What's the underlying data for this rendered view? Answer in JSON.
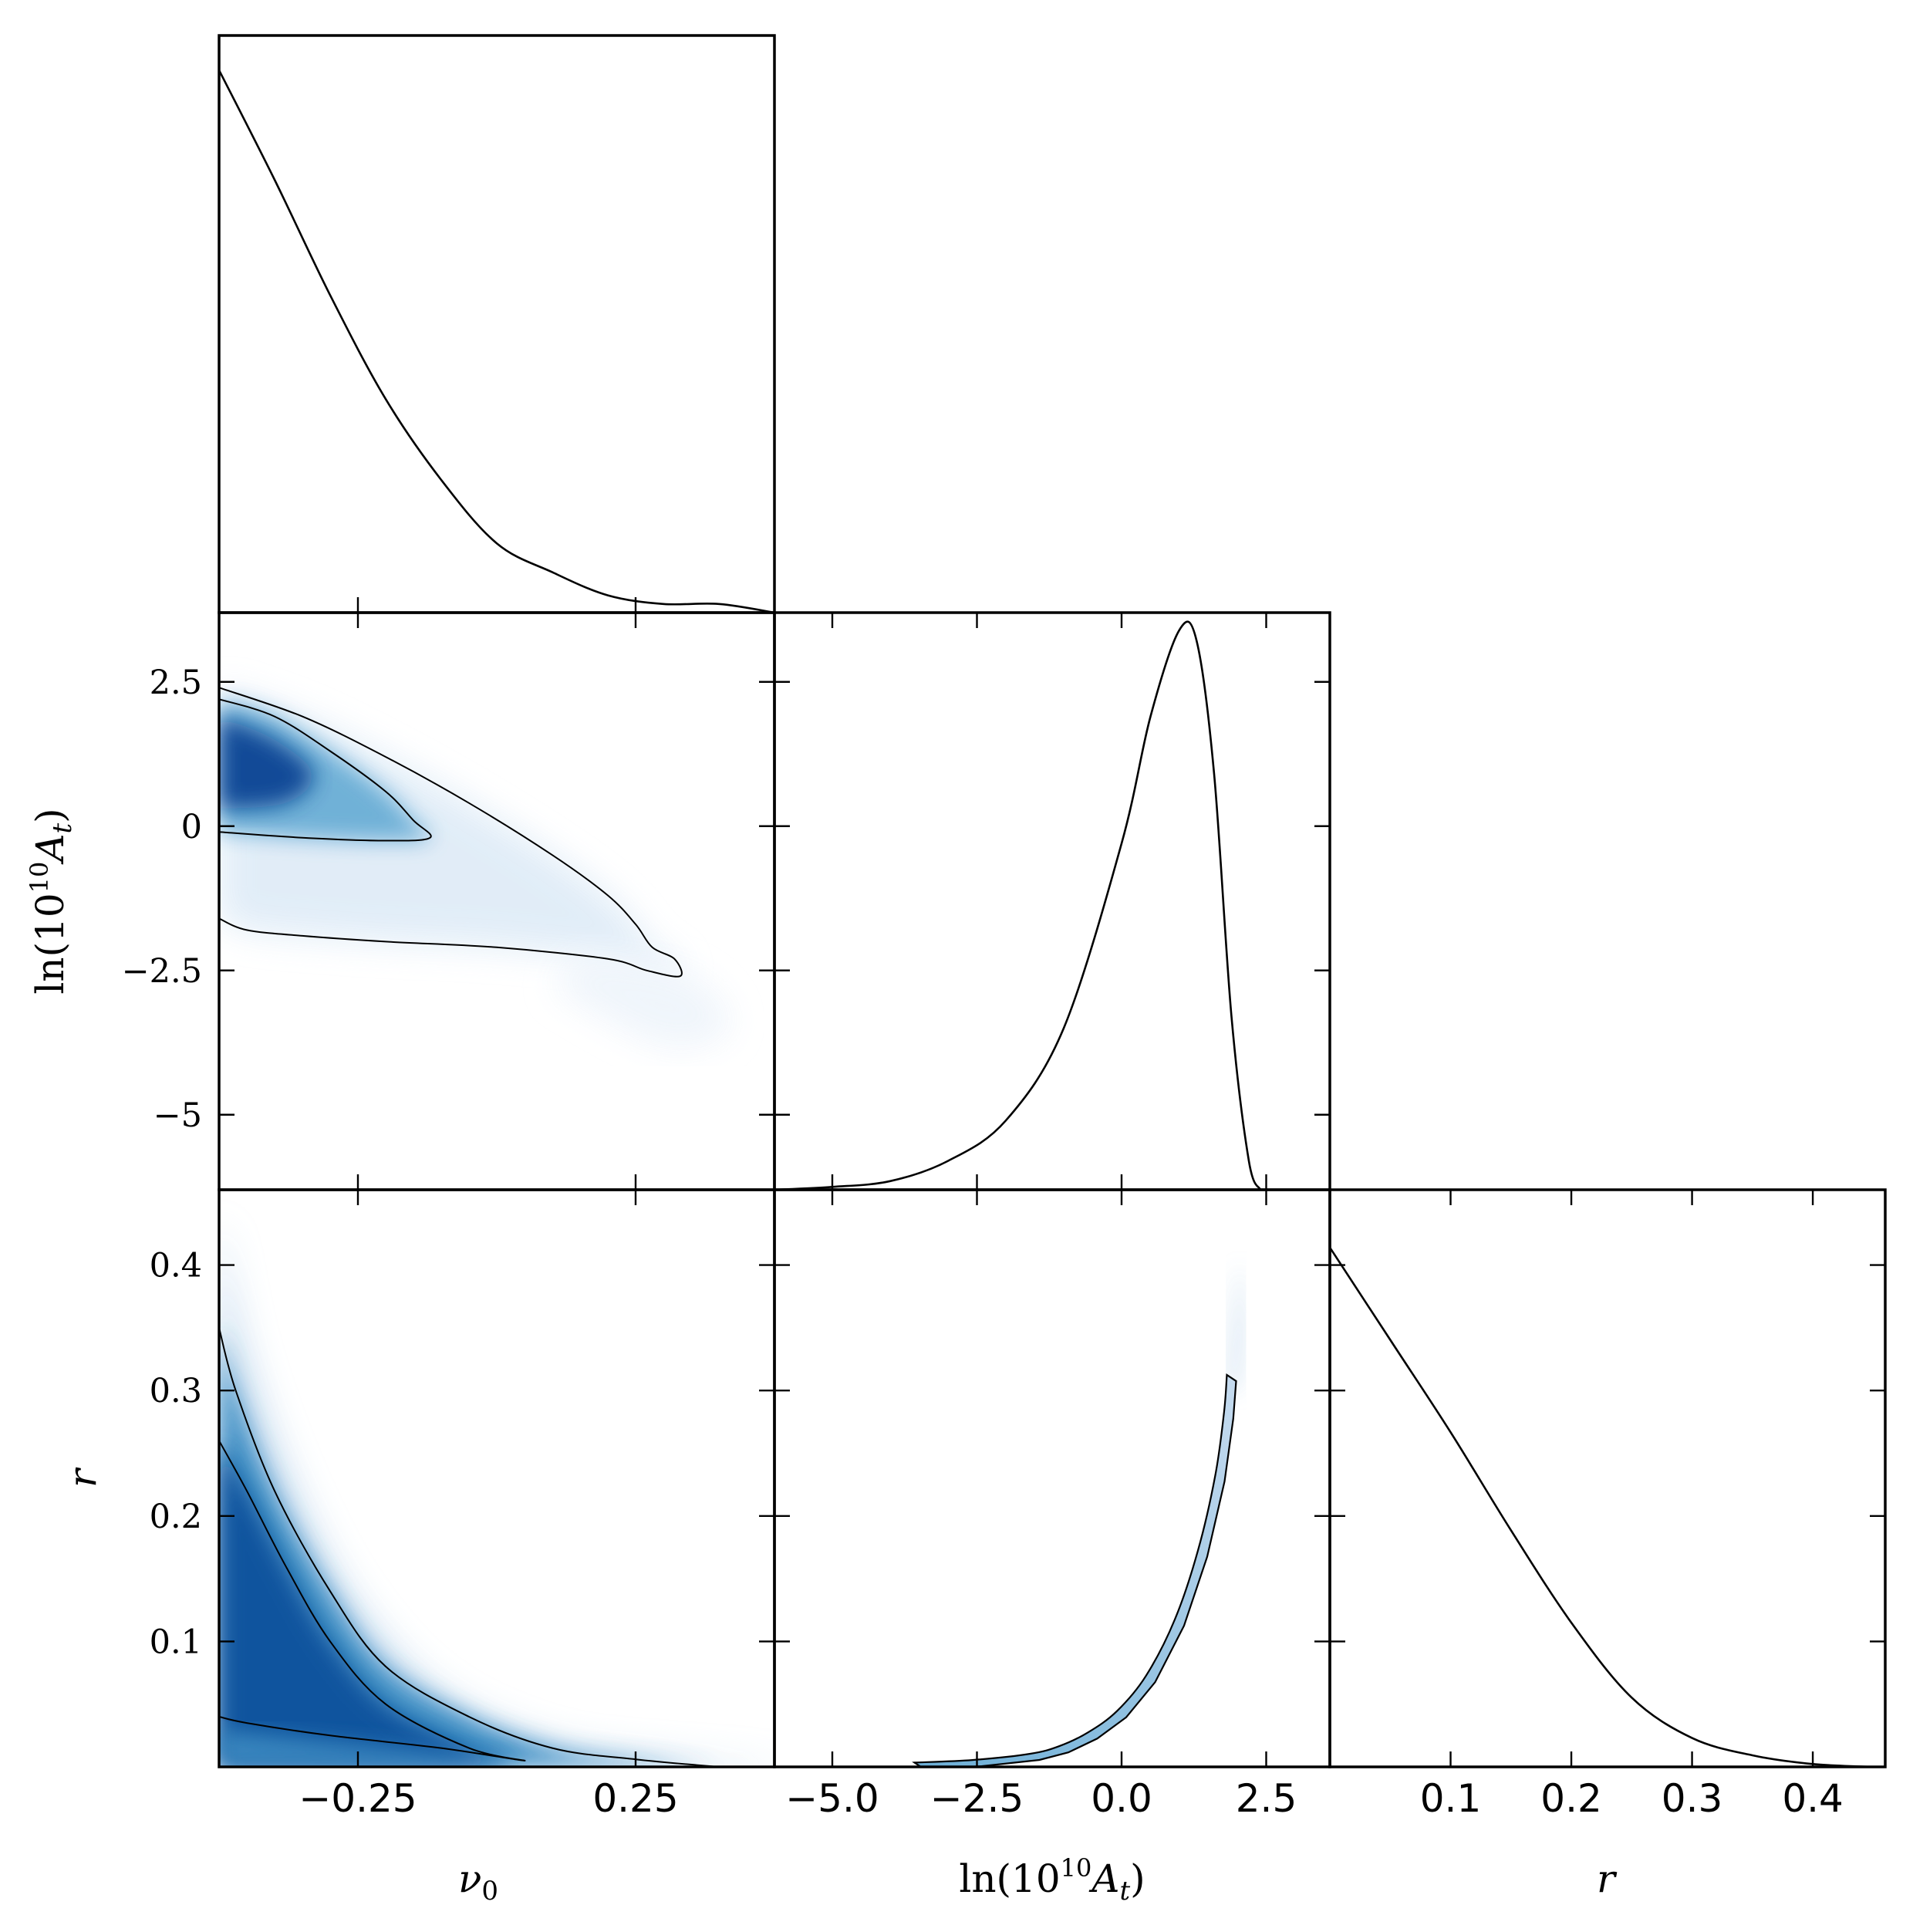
{
  "chart_data": [
    {
      "type": "line",
      "panel": "nu0-marginal",
      "x_range": [
        -0.5,
        0.5
      ],
      "x": [
        -0.5,
        -0.4,
        -0.3,
        -0.2,
        -0.1,
        0.0,
        0.1,
        0.2,
        0.3,
        0.4,
        0.5
      ],
      "y": [
        0.94,
        0.75,
        0.55,
        0.37,
        0.23,
        0.12,
        0.07,
        0.03,
        0.015,
        0.015,
        0.0
      ]
    },
    {
      "type": "heatmap",
      "panel": "nu0-vs-lnAt",
      "xlabel": "ν₀",
      "ylabel": "ln(10¹⁰ Aₜ)",
      "x_range": [
        -0.5,
        0.5
      ],
      "y_range": [
        -6.3,
        3.7
      ],
      "yticks": [
        "2.5",
        "0",
        "−2.5",
        "−5"
      ],
      "ytick_values": [
        2.5,
        0,
        -2.5,
        -5
      ],
      "xticks": [
        -0.25,
        0.25
      ],
      "contour_1sigma": [
        [
          -0.5,
          2.2
        ],
        [
          -0.4,
          1.9
        ],
        [
          -0.3,
          1.3
        ],
        [
          -0.2,
          0.6
        ],
        [
          -0.15,
          0.1
        ],
        [
          -0.12,
          -0.2
        ],
        [
          -0.2,
          -0.25
        ],
        [
          -0.35,
          -0.2
        ],
        [
          -0.5,
          -0.1
        ]
      ],
      "contour_2sigma": [
        [
          -0.5,
          2.4
        ],
        [
          -0.35,
          1.9
        ],
        [
          -0.2,
          1.2
        ],
        [
          -0.05,
          0.4
        ],
        [
          0.1,
          -0.5
        ],
        [
          0.2,
          -1.2
        ],
        [
          0.25,
          -1.7
        ],
        [
          0.28,
          -2.1
        ],
        [
          0.32,
          -2.3
        ],
        [
          0.33,
          -2.6
        ],
        [
          0.27,
          -2.5
        ],
        [
          0.2,
          -2.3
        ],
        [
          0.0,
          -2.1
        ],
        [
          -0.2,
          -2.0
        ],
        [
          -0.35,
          -1.9
        ],
        [
          -0.45,
          -1.8
        ],
        [
          -0.5,
          -1.6
        ]
      ]
    },
    {
      "type": "line",
      "panel": "lnAt-marginal",
      "x_range": [
        -6.0,
        3.6
      ],
      "x": [
        -6.0,
        -5.0,
        -4.0,
        -3.0,
        -2.0,
        -1.0,
        0.0,
        0.5,
        1.0,
        1.3,
        1.6,
        1.9,
        2.2,
        2.4
      ],
      "y": [
        0.0,
        0.005,
        0.015,
        0.05,
        0.12,
        0.28,
        0.6,
        0.82,
        0.97,
        0.95,
        0.72,
        0.3,
        0.05,
        0.0
      ]
    },
    {
      "type": "heatmap",
      "panel": "nu0-vs-r",
      "xlabel": "ν₀",
      "ylabel": "r",
      "x_range": [
        -0.5,
        0.5
      ],
      "y_range": [
        0.0,
        0.46
      ],
      "xticks": [
        "−0.25",
        "0.25"
      ],
      "xtick_values": [
        -0.25,
        0.25
      ],
      "yticks": [
        "0.1",
        "0.2",
        "0.3",
        "0.4"
      ],
      "ytick_values": [
        0.1,
        0.2,
        0.3,
        0.4
      ],
      "contour_1sigma": [
        [
          -0.5,
          0.26
        ],
        [
          -0.45,
          0.22
        ],
        [
          -0.38,
          0.16
        ],
        [
          -0.3,
          0.1
        ],
        [
          -0.2,
          0.05
        ],
        [
          -0.05,
          0.015
        ],
        [
          0.05,
          0.005
        ],
        [
          -0.1,
          0.015
        ],
        [
          -0.3,
          0.025
        ],
        [
          -0.45,
          0.035
        ],
        [
          -0.5,
          0.04
        ]
      ],
      "contour_2sigma": [
        [
          -0.5,
          0.35
        ],
        [
          -0.47,
          0.3
        ],
        [
          -0.4,
          0.22
        ],
        [
          -0.3,
          0.14
        ],
        [
          -0.2,
          0.08
        ],
        [
          -0.05,
          0.04
        ],
        [
          0.1,
          0.015
        ],
        [
          0.25,
          0.006
        ],
        [
          0.4,
          0.0
        ]
      ]
    },
    {
      "type": "heatmap",
      "panel": "lnAt-vs-r",
      "xlabel": "ln(10¹⁰ Aₜ)",
      "x_range": [
        -6.0,
        3.6
      ],
      "y_range": [
        0.0,
        0.46
      ],
      "xticks": [
        "−5.0",
        "−2.5",
        "0.0",
        "2.5"
      ],
      "xtick_values": [
        -5.0,
        -2.5,
        0.0,
        2.5
      ],
      "ridge": [
        [
          -3.5,
          0.001
        ],
        [
          -2.5,
          0.003
        ],
        [
          -1.5,
          0.008
        ],
        [
          -1.0,
          0.014
        ],
        [
          -0.5,
          0.025
        ],
        [
          0.0,
          0.042
        ],
        [
          0.5,
          0.07
        ],
        [
          1.0,
          0.115
        ],
        [
          1.4,
          0.17
        ],
        [
          1.7,
          0.23
        ],
        [
          1.85,
          0.28
        ],
        [
          1.9,
          0.31
        ]
      ]
    },
    {
      "type": "line",
      "panel": "r-marginal",
      "xlabel": "r",
      "x_range": [
        0.0,
        0.46
      ],
      "xticks": [
        "0.1",
        "0.2",
        "0.3",
        "0.4"
      ],
      "xtick_values": [
        0.1,
        0.2,
        0.3,
        0.4
      ],
      "x": [
        0.0,
        0.05,
        0.1,
        0.15,
        0.2,
        0.25,
        0.3,
        0.35,
        0.4,
        0.45
      ],
      "y": [
        0.9,
        0.74,
        0.58,
        0.41,
        0.25,
        0.12,
        0.05,
        0.02,
        0.005,
        0.0
      ]
    }
  ],
  "labels": {
    "nu0": "ν",
    "nu0_sub": "0",
    "lnAt_prefix": "ln(10",
    "lnAt_sup": "10",
    "lnAt_A": "A",
    "lnAt_sub": "t",
    "lnAt_close": ")",
    "r": "r"
  }
}
